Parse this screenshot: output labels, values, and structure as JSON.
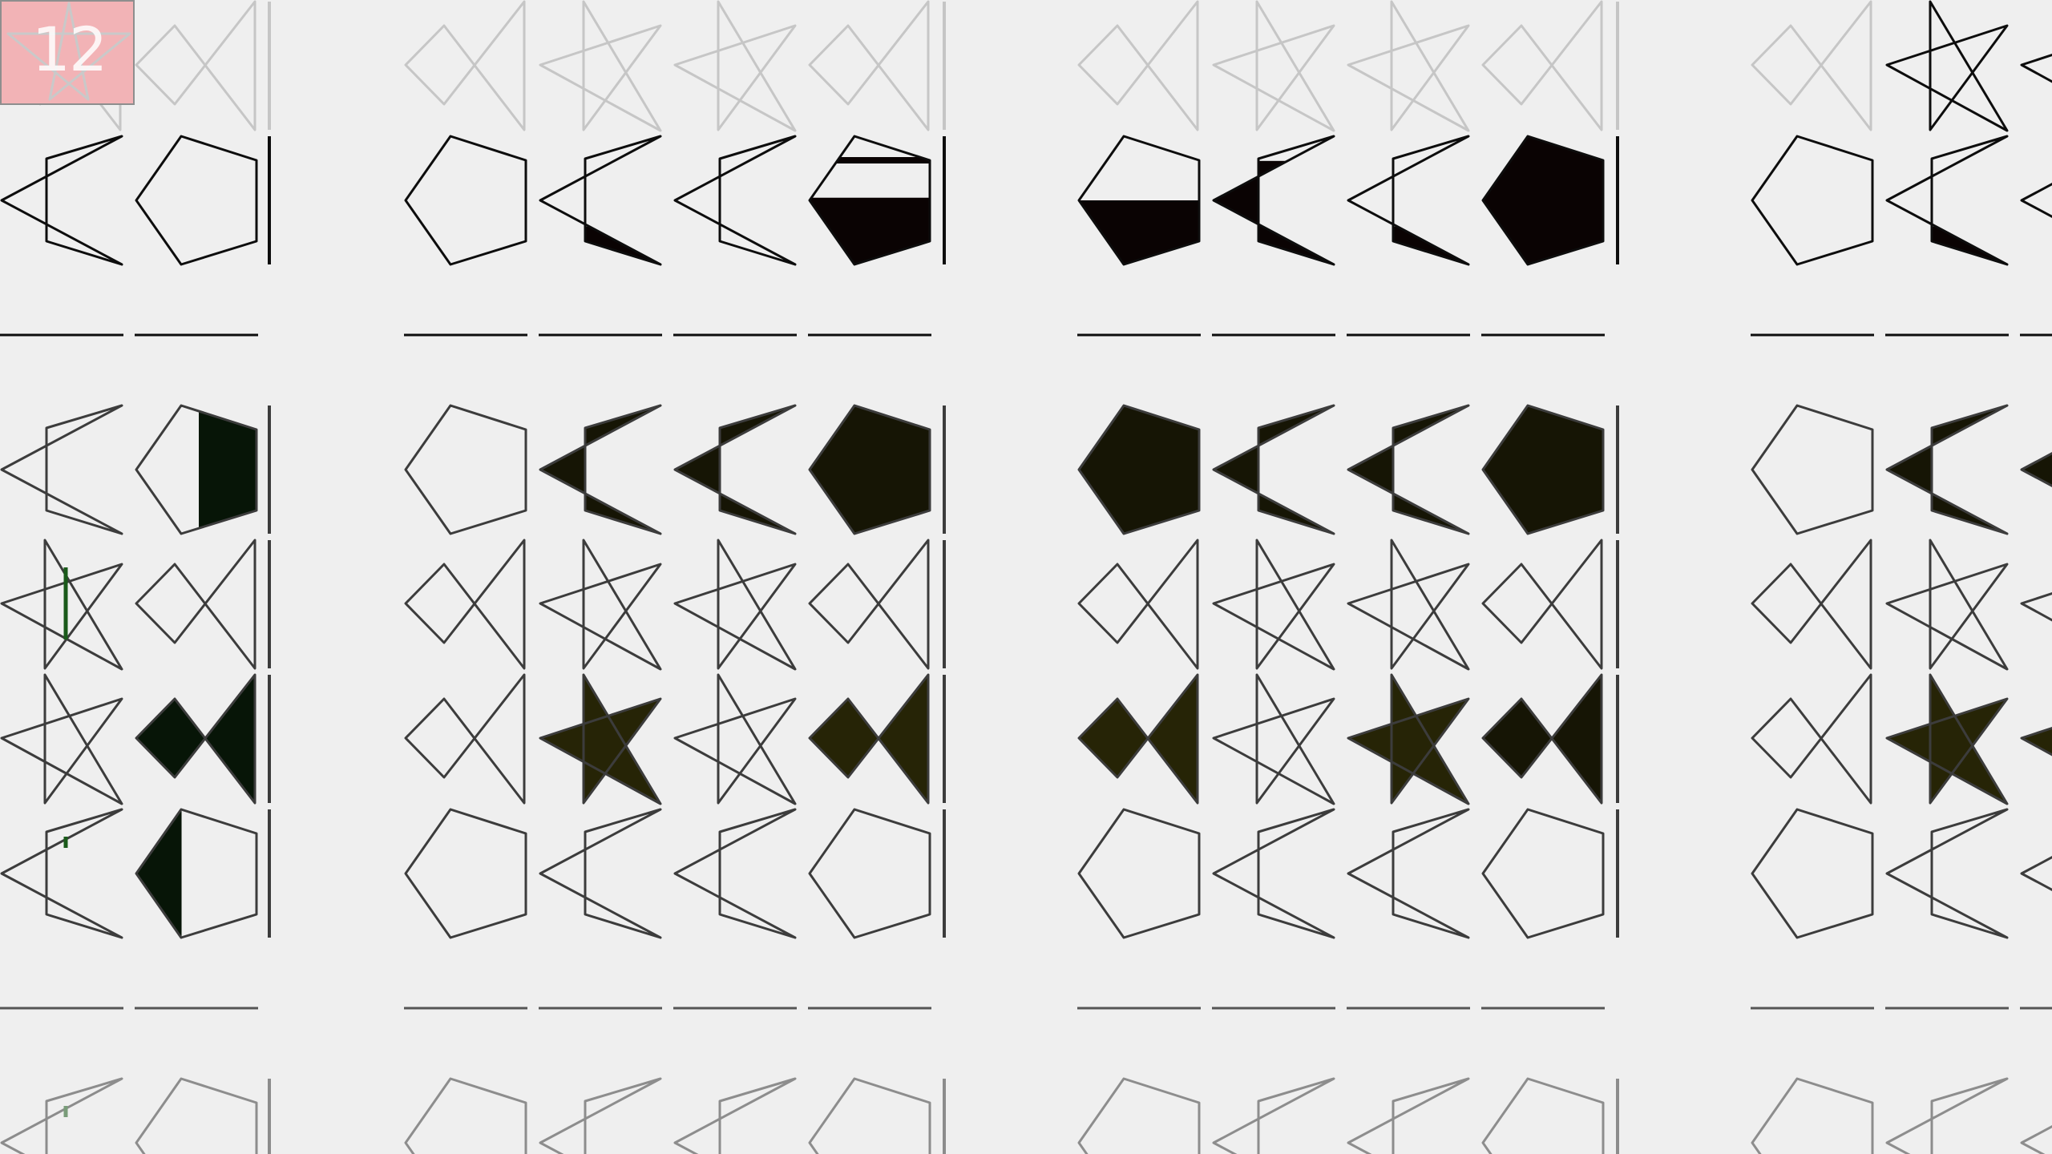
{
  "level": {
    "number": "12"
  },
  "colors": {
    "background": "#efefef",
    "badge": "#f2b3b6",
    "black": "#0a0303",
    "olive_dark": "#161505",
    "olive": "#262406",
    "green_dark": "#071507"
  },
  "board": {
    "columns": 16,
    "line_rows": [
      2,
      7
    ],
    "rows": [
      {
        "faded": true,
        "shapes": [
          {
            "s": "bowtie"
          },
          {
            "s": "bowtie"
          },
          {
            "s": "bar"
          },
          {
            "s": "bowtie"
          },
          {
            "s": "star"
          },
          {
            "s": "star"
          },
          {
            "s": "bowtie"
          },
          {
            "s": "bar"
          },
          {
            "s": "bowtie"
          },
          {
            "s": "star"
          },
          {
            "s": "star"
          },
          {
            "s": "bowtie"
          },
          {
            "s": "bar"
          },
          {
            "s": "bowtie"
          },
          {
            "s": "star",
            "solid": true
          },
          {
            "s": "star",
            "solid": true
          }
        ]
      },
      {
        "shapes": [
          {
            "s": "chevron"
          },
          {
            "s": "pentagon"
          },
          {
            "s": "bar"
          },
          {
            "s": "pentagon"
          },
          {
            "s": "chevron",
            "fill": "black",
            "level": 0.3
          },
          {
            "s": "chevron"
          },
          {
            "s": "pentagon",
            "fill": "black",
            "level": 0.52,
            "stripe": true
          },
          {
            "s": "bar"
          },
          {
            "s": "pentagon",
            "fill": "black",
            "level": 0.5
          },
          {
            "s": "chevron",
            "fill": "black",
            "level": 0.8
          },
          {
            "s": "chevron",
            "fill": "black",
            "level": 0.3
          },
          {
            "s": "pentagon",
            "fill": "black",
            "level": 1
          },
          {
            "s": "bar"
          },
          {
            "s": "pentagon"
          },
          {
            "s": "chevron",
            "fill": "black",
            "level": 0.3
          },
          {
            "s": "chevron",
            "fill": "black",
            "level": 0.3
          }
        ]
      },
      {
        "shapes": []
      },
      {
        "shapes": [
          {
            "s": "chevron"
          },
          {
            "s": "pentagon",
            "fill": "green_dark",
            "vfrac": 0.55
          },
          {
            "s": "bar"
          },
          {
            "s": "pentagon"
          },
          {
            "s": "chevron",
            "fill": "olive_dark",
            "level": 1
          },
          {
            "s": "chevron",
            "fill": "olive_dark",
            "level": 1
          },
          {
            "s": "pentagon",
            "fill": "olive_dark",
            "level": 1
          },
          {
            "s": "bar"
          },
          {
            "s": "pentagon",
            "fill": "olive_dark",
            "level": 1
          },
          {
            "s": "chevron",
            "fill": "olive_dark",
            "level": 1
          },
          {
            "s": "chevron",
            "fill": "olive_dark",
            "level": 1
          },
          {
            "s": "pentagon",
            "fill": "olive_dark",
            "level": 1
          },
          {
            "s": "bar"
          },
          {
            "s": "pentagon"
          },
          {
            "s": "chevron",
            "fill": "olive_dark",
            "level": 1
          },
          {
            "s": "chevron",
            "fill": "olive_dark",
            "level": 1
          }
        ]
      },
      {
        "shapes": [
          {
            "s": "star",
            "marker": true
          },
          {
            "s": "bowtie"
          },
          {
            "s": "bar"
          },
          {
            "s": "bowtie"
          },
          {
            "s": "star"
          },
          {
            "s": "star"
          },
          {
            "s": "bowtie"
          },
          {
            "s": "bar"
          },
          {
            "s": "bowtie"
          },
          {
            "s": "star"
          },
          {
            "s": "star"
          },
          {
            "s": "bowtie"
          },
          {
            "s": "bar"
          },
          {
            "s": "bowtie"
          },
          {
            "s": "star"
          },
          {
            "s": "star"
          }
        ]
      },
      {
        "shapes": [
          {
            "s": "star"
          },
          {
            "s": "bowtie",
            "fill": "green_dark",
            "level": 1
          },
          {
            "s": "bar"
          },
          {
            "s": "bowtie"
          },
          {
            "s": "star",
            "fill": "olive",
            "level": 1
          },
          {
            "s": "star"
          },
          {
            "s": "bowtie",
            "fill": "olive",
            "level": 1
          },
          {
            "s": "bar"
          },
          {
            "s": "bowtie",
            "fill": "olive",
            "level": 1
          },
          {
            "s": "star"
          },
          {
            "s": "star",
            "fill": "olive",
            "level": 1
          },
          {
            "s": "bowtie",
            "fill": "olive_dark",
            "level": 1
          },
          {
            "s": "bar"
          },
          {
            "s": "bowtie"
          },
          {
            "s": "star",
            "fill": "olive",
            "level": 1
          },
          {
            "s": "star",
            "fill": "olive",
            "level": 1
          }
        ]
      },
      {
        "shapes": [
          {
            "s": "chevron",
            "marker": true
          },
          {
            "s": "pentagon",
            "fill": "green_dark",
            "vfrac": 0.38
          },
          {
            "s": "bar"
          },
          {
            "s": "pentagon"
          },
          {
            "s": "chevron"
          },
          {
            "s": "chevron"
          },
          {
            "s": "pentagon"
          },
          {
            "s": "bar"
          },
          {
            "s": "pentagon"
          },
          {
            "s": "chevron"
          },
          {
            "s": "chevron"
          },
          {
            "s": "pentagon"
          },
          {
            "s": "bar"
          },
          {
            "s": "pentagon"
          },
          {
            "s": "chevron"
          },
          {
            "s": "chevron"
          }
        ]
      },
      {
        "shapes": []
      },
      {
        "faded": true,
        "shapes": [
          {
            "s": "chevron",
            "marker": true
          },
          {
            "s": "pentagon"
          },
          {
            "s": "bar"
          },
          {
            "s": "pentagon"
          },
          {
            "s": "chevron"
          },
          {
            "s": "chevron"
          },
          {
            "s": "pentagon"
          },
          {
            "s": "bar"
          },
          {
            "s": "pentagon"
          },
          {
            "s": "chevron"
          },
          {
            "s": "chevron"
          },
          {
            "s": "pentagon"
          },
          {
            "s": "bar"
          },
          {
            "s": "pentagon"
          },
          {
            "s": "chevron"
          },
          {
            "s": "chevron"
          }
        ]
      }
    ]
  }
}
